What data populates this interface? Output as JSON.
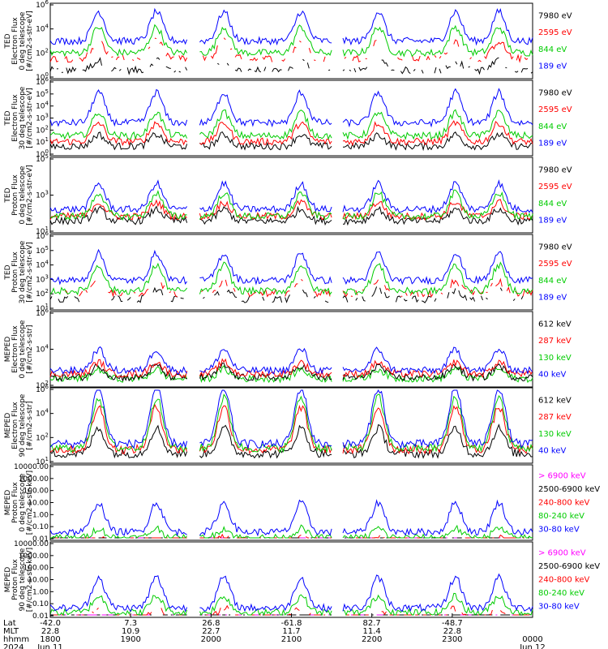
{
  "colors": {
    "blue": "#0000ff",
    "red": "#ff0000",
    "green": "#00cc00",
    "black": "#000000",
    "magenta": "#ff00ff"
  },
  "chart_data": [
    {
      "type": "line",
      "ylabel": [
        "TED",
        "Electron Flux",
        "0 deg telescope",
        "[#/cm2-s-str-eV]"
      ],
      "yscale": "log",
      "ylim": [
        1,
        1000000
      ],
      "yticks": [
        "10^0",
        "10^2",
        "10^4",
        "10^6"
      ],
      "series": [
        {
          "name": "7980 eV",
          "color": "black",
          "baseline": 0.5,
          "spikes": 0.8,
          "sparse": true
        },
        {
          "name": "2595 eV",
          "color": "red",
          "baseline": 1.5,
          "spikes": 1.5,
          "sparse": true
        },
        {
          "name": "844 eV",
          "color": "green",
          "baseline": 2.0,
          "spikes": 2.2,
          "sparse": false
        },
        {
          "name": "189 eV",
          "color": "blue",
          "baseline": 3.0,
          "spikes": 2.5,
          "sparse": false
        }
      ]
    },
    {
      "type": "line",
      "ylabel": [
        "TED",
        "Electron Flux",
        "30 deg telescope",
        "[#/cm2-s-str-eV]"
      ],
      "yscale": "log",
      "ylim": [
        1,
        1000000
      ],
      "yticks": [
        "10^0",
        "10^1",
        "10^2",
        "10^3",
        "10^4",
        "10^5",
        "10^6"
      ],
      "series": [
        {
          "name": "7980 eV",
          "color": "black",
          "baseline": 0.6,
          "spikes": 1.0,
          "sparse": false
        },
        {
          "name": "2595 eV",
          "color": "red",
          "baseline": 1.0,
          "spikes": 1.6,
          "sparse": false
        },
        {
          "name": "844 eV",
          "color": "green",
          "baseline": 1.5,
          "spikes": 2.0,
          "sparse": false
        },
        {
          "name": "189 eV",
          "color": "blue",
          "baseline": 2.6,
          "spikes": 2.6,
          "sparse": false
        }
      ]
    },
    {
      "type": "line",
      "ylabel": [
        "TED",
        "Proton Flux",
        "0 deg telescope",
        "[#/cm2-s-str-eV]"
      ],
      "yscale": "log",
      "ylim": [
        1,
        1000000
      ],
      "yticks": [
        "10^1",
        "10^3",
        "10^5"
      ],
      "series": [
        {
          "name": "7980 eV",
          "color": "black",
          "baseline": 0.8,
          "spikes": 1.0,
          "sparse": false
        },
        {
          "name": "2595 eV",
          "color": "red",
          "baseline": 1.2,
          "spikes": 1.2,
          "sparse": false
        },
        {
          "name": "844 eV",
          "color": "green",
          "baseline": 1.2,
          "spikes": 2.0,
          "sparse": false
        },
        {
          "name": "189 eV",
          "color": "blue",
          "baseline": 1.8,
          "spikes": 2.2,
          "sparse": false
        }
      ]
    },
    {
      "type": "line",
      "ylabel": [
        "TED",
        "Proton Flux",
        "30 deg telescope",
        "[#/cm2-s-str-eV]"
      ],
      "yscale": "log",
      "ylim": [
        1,
        1000000
      ],
      "yticks": [
        "10^1",
        "10^2",
        "10^3",
        "10^4",
        "10^5",
        "10^6"
      ],
      "series": [
        {
          "name": "7980 eV",
          "color": "black",
          "baseline": 0.7,
          "spikes": 0.8,
          "sparse": true
        },
        {
          "name": "2595 eV",
          "color": "red",
          "baseline": 1.2,
          "spikes": 1.0,
          "sparse": true
        },
        {
          "name": "844 eV",
          "color": "green",
          "baseline": 1.4,
          "spikes": 2.2,
          "sparse": false
        },
        {
          "name": "189 eV",
          "color": "blue",
          "baseline": 2.3,
          "spikes": 2.3,
          "sparse": false
        }
      ]
    },
    {
      "type": "line",
      "ylabel": [
        "MEPED",
        "Electron Flux",
        "0 deg telescope",
        "[#/cm2-s-str]"
      ],
      "yscale": "log",
      "ylim": [
        1,
        1000000
      ],
      "yticks": [
        "10^2",
        "10^4",
        "10^6"
      ],
      "series": [
        {
          "name": "612 keV",
          "color": "black",
          "baseline": 0.6,
          "spikes": 1.0,
          "sparse": false
        },
        {
          "name": "287 keV",
          "color": "red",
          "baseline": 0.9,
          "spikes": 1.0,
          "sparse": false
        },
        {
          "name": "130 keV",
          "color": "green",
          "baseline": 0.5,
          "spikes": 0.8,
          "sparse": false
        },
        {
          "name": "40 keV",
          "color": "blue",
          "baseline": 1.2,
          "spikes": 1.8,
          "sparse": false
        }
      ]
    },
    {
      "type": "line",
      "ylabel": [
        "MEPED",
        "Electron Flux",
        "90 deg telescope",
        "[#/cm2-s-str]"
      ],
      "yscale": "log",
      "ylim": [
        10,
        1000000
      ],
      "yticks": [
        "10^1",
        "10^2",
        "10^4",
        "10^6"
      ],
      "series": [
        {
          "name": "612 keV",
          "color": "black",
          "baseline": 0.5,
          "spikes": 1.8,
          "sparse": false
        },
        {
          "name": "287 keV",
          "color": "red",
          "baseline": 0.8,
          "spikes": 3.0,
          "sparse": false
        },
        {
          "name": "130 keV",
          "color": "green",
          "baseline": 0.9,
          "spikes": 3.6,
          "sparse": false
        },
        {
          "name": "40 keV",
          "color": "blue",
          "baseline": 1.2,
          "spikes": 4.0,
          "sparse": false
        }
      ]
    },
    {
      "type": "line",
      "ylabel": [
        "MEPED",
        "Proton Flux",
        "0 deg telescope",
        "[#/cm2-s-str-keV]"
      ],
      "yscale": "log",
      "ylim": [
        0.01,
        10000
      ],
      "yticks": [
        "0.01",
        "0.10",
        "1.00",
        "10.00",
        "100.00",
        "1000.00",
        "10000.00"
      ],
      "series": [
        {
          "name": "> 6900 keV",
          "color": "magenta",
          "baseline": -2.0,
          "spikes": 0.5,
          "sparse": true
        },
        {
          "name": "2500-6900 keV",
          "color": "black",
          "baseline": -1.3,
          "spikes": 0.4,
          "sparse": true
        },
        {
          "name": "240-800 keV",
          "color": "red",
          "baseline": -0.5,
          "spikes": 0.5,
          "sparse": true
        },
        {
          "name": "80-240 keV",
          "color": "green",
          "baseline": 0.0,
          "spikes": 0.8,
          "sparse": false
        },
        {
          "name": "30-80 keV",
          "color": "blue",
          "baseline": 0.5,
          "spikes": 2.5,
          "sparse": false
        }
      ]
    },
    {
      "type": "line",
      "ylabel": [
        "MEPED",
        "Proton Flux",
        "90 deg telescope",
        "[#/cm2-s-str-keV]"
      ],
      "yscale": "log",
      "ylim": [
        0.01,
        10000
      ],
      "yticks": [
        "0.01",
        "0.10",
        "1.00",
        "10.00",
        "100.00",
        "1000.00",
        "10000.00"
      ],
      "series": [
        {
          "name": "> 6900 keV",
          "color": "magenta",
          "baseline": -2.0,
          "spikes": 0.8,
          "sparse": true
        },
        {
          "name": "2500-6900 keV",
          "color": "black",
          "baseline": -1.0,
          "spikes": 0.5,
          "sparse": true
        },
        {
          "name": "240-800 keV",
          "color": "red",
          "baseline": -0.4,
          "spikes": 1.0,
          "sparse": true
        },
        {
          "name": "80-240 keV",
          "color": "green",
          "baseline": 0.2,
          "spikes": 1.4,
          "sparse": false
        },
        {
          "name": "30-80 keV",
          "color": "blue",
          "baseline": 0.6,
          "spikes": 2.6,
          "sparse": false
        }
      ]
    }
  ],
  "bottom_axis": {
    "row_labels": [
      "Lat",
      "MLT",
      "hhmm",
      "2024"
    ],
    "columns": [
      {
        "lat": "-42.0",
        "mlt": "22.8",
        "hhmm": "1800",
        "date": "Jun 11"
      },
      {
        "lat": "7.3",
        "mlt": "10.9",
        "hhmm": "1900",
        "date": ""
      },
      {
        "lat": "26.8",
        "mlt": "22.7",
        "hhmm": "2000",
        "date": ""
      },
      {
        "lat": "-61.8",
        "mlt": "11.7",
        "hhmm": "2100",
        "date": ""
      },
      {
        "lat": "82.7",
        "mlt": "11.4",
        "hhmm": "2200",
        "date": ""
      },
      {
        "lat": "-48.7",
        "mlt": "22.8",
        "hhmm": "2300",
        "date": ""
      },
      {
        "lat": "",
        "mlt": "",
        "hhmm": "0000",
        "date": "Jun 12"
      }
    ]
  }
}
